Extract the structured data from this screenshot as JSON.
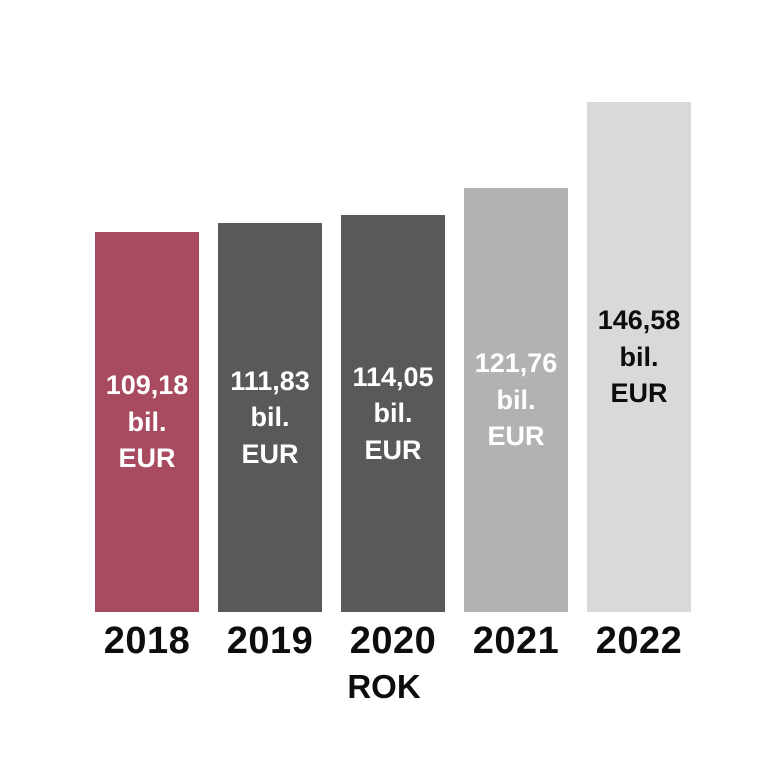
{
  "chart_data": {
    "type": "bar",
    "title": "",
    "xlabel": "ROK",
    "ylabel": "",
    "unit": "bil. EUR",
    "categories": [
      "2018",
      "2019",
      "2020",
      "2021",
      "2022"
    ],
    "values": [
      109.18,
      111.83,
      114.05,
      121.76,
      146.58
    ],
    "ylim": [
      0,
      146.58
    ],
    "grid": false,
    "legend": false,
    "bars": [
      {
        "year": "2018",
        "value": 109.18,
        "label": "109,18\nbil.\nEUR",
        "color": "#a84a60",
        "label_color": "#ffffff"
      },
      {
        "year": "2019",
        "value": 111.83,
        "label": "111,83\nbil.\nEUR",
        "color": "#595959",
        "label_color": "#ffffff"
      },
      {
        "year": "2020",
        "value": 114.05,
        "label": "114,05\nbil.\nEUR",
        "color": "#595959",
        "label_color": "#ffffff"
      },
      {
        "year": "2021",
        "value": 121.76,
        "label": "121,76\nbil.\nEUR",
        "color": "#b2b2b2",
        "label_color": "#ffffff"
      },
      {
        "year": "2022",
        "value": 146.58,
        "label": "146,58\nbil.\nEUR",
        "color": "#d9d9d9",
        "label_color": "#0d0d0d"
      }
    ]
  }
}
